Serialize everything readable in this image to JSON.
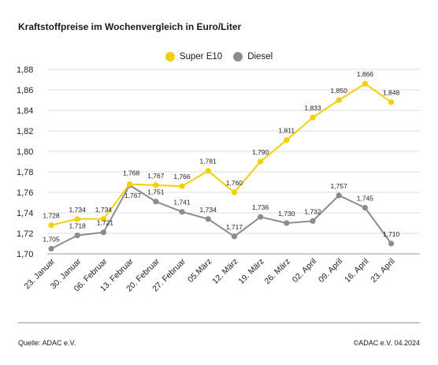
{
  "title": "Kraftstoffpreise im Wochenvergleich in Euro/Liter",
  "legend": [
    {
      "name": "Super E10",
      "color": "#f5d000"
    },
    {
      "name": "Diesel",
      "color": "#8c8c8c"
    }
  ],
  "footer": {
    "source": "Quelle: ADAC e.V.",
    "copyright": "©ADAC e.V. 04.2024"
  },
  "chart_data": {
    "type": "line",
    "title": "Kraftstoffpreise im Wochenvergleich in Euro/Liter",
    "xlabel": "",
    "ylabel": "",
    "categories": [
      "23. Januar",
      "30. Januar",
      "06. Februar",
      "13. Februar",
      "20. Februar",
      "27. Februar",
      "05.März",
      "12. März",
      "19. März",
      "26. März",
      "02. April",
      "09. April",
      "16. April",
      "23. April"
    ],
    "series": [
      {
        "name": "Super E10",
        "color": "#f5d000",
        "values": [
          1.728,
          1.734,
          1.734,
          1.768,
          1.767,
          1.766,
          1.781,
          1.76,
          1.79,
          1.811,
          1.833,
          1.85,
          1.866,
          1.848
        ],
        "labels": [
          "1,728",
          "1,734",
          "1,734",
          "1,768",
          "1,767",
          "1,766",
          "1,781",
          "1,760",
          "1,790",
          "1,811",
          "1,833",
          "1,850",
          "1,866",
          "1,848"
        ]
      },
      {
        "name": "Diesel",
        "color": "#8c8c8c",
        "values": [
          1.705,
          1.718,
          1.721,
          1.767,
          1.751,
          1.741,
          1.734,
          1.717,
          1.736,
          1.73,
          1.732,
          1.757,
          1.745,
          1.71
        ],
        "labels": [
          "1,705",
          "1,718",
          "1,721",
          "1,767",
          "1,751",
          "1,741",
          "1,734",
          "1,717",
          "1,736",
          "1,730",
          "1,732",
          "1,757",
          "1,745",
          "1,710"
        ]
      }
    ],
    "ylim": [
      1.7,
      1.88
    ],
    "yticks": [
      1.7,
      1.72,
      1.74,
      1.76,
      1.78,
      1.8,
      1.82,
      1.84,
      1.86,
      1.88
    ],
    "ytick_labels": [
      "1,70",
      "1,72",
      "1,74",
      "1,76",
      "1,78",
      "1,80",
      "1,82",
      "1,84",
      "1,86",
      "1,88"
    ],
    "grid": true,
    "legend_position": "top-center"
  }
}
